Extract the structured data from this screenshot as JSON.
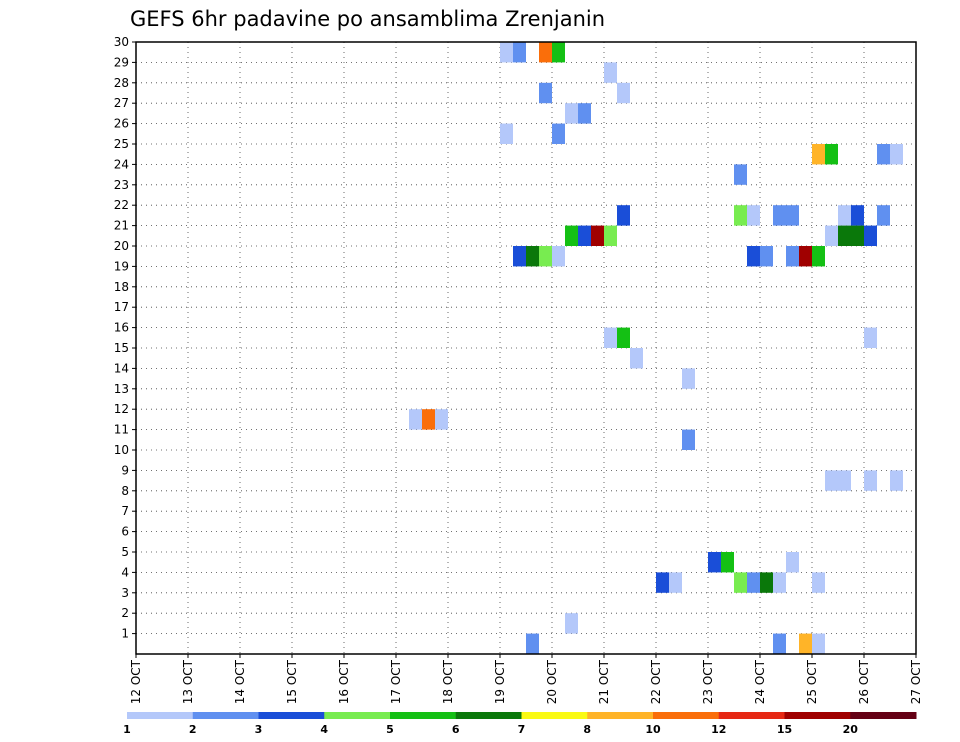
{
  "chart_data": {
    "type": "heatmap",
    "title": "GEFS 6hr padavine po ansamblima Zrenjanin",
    "xlabel": "",
    "ylabel": "",
    "x_tick_labels": [
      "12 OCT",
      "13 OCT",
      "14 OCT",
      "15 OCT",
      "16 OCT",
      "17 OCT",
      "18 OCT",
      "19 OCT",
      "20 OCT",
      "21 OCT",
      "22 OCT",
      "23 OCT",
      "24 OCT",
      "25 OCT",
      "26 OCT",
      "27 OCT"
    ],
    "y_tick_labels": [
      "1",
      "2",
      "3",
      "4",
      "5",
      "6",
      "7",
      "8",
      "9",
      "10",
      "11",
      "12",
      "13",
      "14",
      "15",
      "16",
      "17",
      "18",
      "19",
      "20",
      "21",
      "22",
      "23",
      "24",
      "25",
      "26",
      "27",
      "28",
      "29",
      "30"
    ],
    "xlim_days": [
      12,
      27
    ],
    "ylim_members": [
      0,
      30
    ],
    "grid": true,
    "colorbar": {
      "levels": [
        1,
        2,
        3,
        4,
        5,
        6,
        7,
        8,
        10,
        12,
        15,
        20
      ],
      "colors": [
        "#b4c8fa",
        "#6090f0",
        "#1a4ed8",
        "#78ec50",
        "#14c014",
        "#0a780a",
        "#fafa14",
        "#ffb428",
        "#fa6e0a",
        "#e62814",
        "#a00000",
        "#640014"
      ]
    },
    "cells": [
      [
        19.0,
        30,
        1
      ],
      [
        19.25,
        30,
        2
      ],
      [
        19.75,
        30,
        10
      ],
      [
        20.0,
        30,
        5
      ],
      [
        21.0,
        29,
        1
      ],
      [
        19.75,
        28,
        2
      ],
      [
        21.25,
        28,
        1
      ],
      [
        20.25,
        27,
        1
      ],
      [
        20.5,
        27,
        2
      ],
      [
        19.0,
        26,
        1
      ],
      [
        20.0,
        26,
        2
      ],
      [
        25.0,
        25,
        8
      ],
      [
        25.25,
        25,
        5
      ],
      [
        26.25,
        25,
        2
      ],
      [
        26.5,
        25,
        1
      ],
      [
        23.5,
        24,
        2
      ],
      [
        21.25,
        22,
        3
      ],
      [
        23.5,
        22,
        4
      ],
      [
        23.75,
        22,
        1
      ],
      [
        24.25,
        22,
        2
      ],
      [
        24.5,
        22,
        2
      ],
      [
        25.5,
        22,
        1
      ],
      [
        25.75,
        22,
        3
      ],
      [
        26.25,
        22,
        2
      ],
      [
        20.25,
        21,
        5
      ],
      [
        20.5,
        21,
        3
      ],
      [
        20.75,
        21,
        15
      ],
      [
        21.0,
        21,
        4
      ],
      [
        25.25,
        21,
        1
      ],
      [
        25.5,
        21,
        6
      ],
      [
        25.75,
        21,
        6
      ],
      [
        26.0,
        21,
        3
      ],
      [
        19.25,
        20,
        3
      ],
      [
        19.5,
        20,
        6
      ],
      [
        19.75,
        20,
        4
      ],
      [
        20.0,
        20,
        1
      ],
      [
        23.75,
        20,
        3
      ],
      [
        24.0,
        20,
        2
      ],
      [
        24.5,
        20,
        2
      ],
      [
        24.75,
        20,
        15
      ],
      [
        25.0,
        20,
        5
      ],
      [
        21.0,
        16,
        1
      ],
      [
        21.25,
        16,
        5
      ],
      [
        26.0,
        16,
        1
      ],
      [
        21.5,
        15,
        1
      ],
      [
        22.5,
        14,
        1
      ],
      [
        17.25,
        12,
        1
      ],
      [
        17.5,
        12,
        10
      ],
      [
        17.75,
        12,
        1
      ],
      [
        22.5,
        11,
        2
      ],
      [
        25.25,
        9,
        1
      ],
      [
        25.5,
        9,
        1
      ],
      [
        26.0,
        9,
        1
      ],
      [
        26.5,
        9,
        1
      ],
      [
        23.0,
        5,
        3
      ],
      [
        23.25,
        5,
        5
      ],
      [
        24.5,
        5,
        1
      ],
      [
        22.0,
        4,
        3
      ],
      [
        22.25,
        4,
        1
      ],
      [
        23.5,
        4,
        4
      ],
      [
        23.75,
        4,
        2
      ],
      [
        24.0,
        4,
        6
      ],
      [
        24.25,
        4,
        1
      ],
      [
        25.0,
        4,
        1
      ],
      [
        20.25,
        2,
        1
      ],
      [
        19.5,
        1,
        2
      ],
      [
        24.25,
        1,
        2
      ],
      [
        24.75,
        1,
        8
      ],
      [
        25.0,
        1,
        1
      ]
    ]
  }
}
